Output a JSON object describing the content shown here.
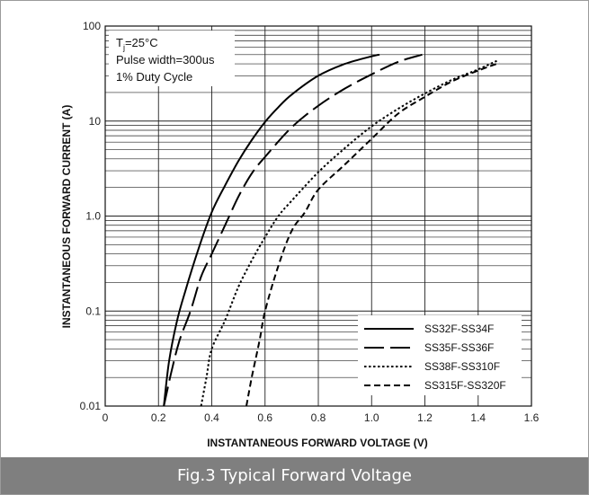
{
  "chart_data": {
    "type": "line",
    "xlabel": "INSTANTANEOUS FORWARD VOLTAGE (V)",
    "ylabel": "INSTANTANEOUS FORWARD CURRENT (A)",
    "xlim": [
      0,
      1.6
    ],
    "ylim": [
      0.01,
      100
    ],
    "yscale": "log",
    "x_ticks": [
      "0",
      "0.2",
      "0.4",
      "0.6",
      "0.8",
      "1.0",
      "1.2",
      "1.4",
      "1.6"
    ],
    "y_ticks": [
      "0.01",
      "0.1",
      "1.0",
      "10",
      "100"
    ],
    "grid": true,
    "legend_position": "bottom-right",
    "annotations": [
      "T=25°C",
      "Pulse width=300us",
      "1% Duty Cycle"
    ],
    "series": [
      {
        "name": "SS32F-SS34F",
        "dash": "solid",
        "x": [
          0.22,
          0.24,
          0.27,
          0.3,
          0.35,
          0.4,
          0.45,
          0.5,
          0.55,
          0.6,
          0.65,
          0.7,
          0.8,
          0.9,
          1.0,
          1.03
        ],
        "y": [
          0.01,
          0.03,
          0.08,
          0.16,
          0.45,
          1.1,
          2.1,
          3.8,
          6.3,
          9.8,
          14,
          19,
          30,
          40,
          48,
          50
        ]
      },
      {
        "name": "SS35F-SS36F",
        "dash": "long",
        "x": [
          0.22,
          0.25,
          0.28,
          0.32,
          0.36,
          0.4,
          0.45,
          0.5,
          0.55,
          0.6,
          0.7,
          0.8,
          0.9,
          1.0,
          1.1,
          1.19
        ],
        "y": [
          0.01,
          0.024,
          0.05,
          0.1,
          0.23,
          0.4,
          0.8,
          1.6,
          2.8,
          4.2,
          8.6,
          14.5,
          22,
          31,
          42,
          50
        ]
      },
      {
        "name": "SS38F-SS310F",
        "dash": "dotted",
        "x": [
          0.36,
          0.38,
          0.4,
          0.45,
          0.5,
          0.55,
          0.6,
          0.65,
          0.7,
          0.8,
          0.9,
          1.0,
          1.1,
          1.2,
          1.3,
          1.4,
          1.47
        ],
        "y": [
          0.01,
          0.02,
          0.04,
          0.08,
          0.18,
          0.34,
          0.6,
          1.0,
          1.45,
          2.9,
          5.2,
          8.8,
          13.5,
          19.5,
          27,
          35,
          43
        ]
      },
      {
        "name": "SS315F-SS320F",
        "dash": "short",
        "x": [
          0.53,
          0.55,
          0.58,
          0.6,
          0.65,
          0.7,
          0.75,
          0.8,
          0.9,
          1.0,
          1.1,
          1.2,
          1.3,
          1.4,
          1.48
        ],
        "y": [
          0.01,
          0.02,
          0.05,
          0.1,
          0.3,
          0.7,
          1.1,
          1.9,
          3.5,
          6.5,
          12,
          18,
          26,
          34,
          41
        ]
      }
    ]
  },
  "note": {
    "tj_main": "T",
    "tj_sub": "j",
    "tj_rest": "=25°C",
    "line2": "Pulse width=300us",
    "line3": "1% Duty Cycle"
  },
  "caption": "Fig.3 Typical Forward Voltage"
}
